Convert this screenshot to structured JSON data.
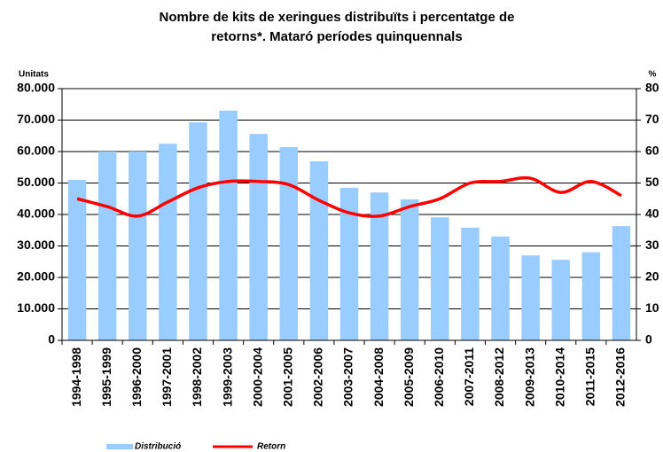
{
  "chart_data": {
    "type": "bar_line",
    "title": [
      "Nombre de kits de xeringues distribuïts i percentatge de",
      "retorns*. Mataró períodes quinquennals"
    ],
    "y_label": "Unitats",
    "y2_label": "%",
    "categories": [
      "1994-1998",
      "1995-1999",
      "1996-2000",
      "1997-2001",
      "1998-2002",
      "1999-2003",
      "2000-2004",
      "2001-2005",
      "2002-2006",
      "2003-2007",
      "2004-2008",
      "2005-2009",
      "2006-2010",
      "2007-2011",
      "2008-2012",
      "2009-2013",
      "2010-2014",
      "2011-2015",
      "2012-2016"
    ],
    "series": [
      {
        "name": "Distribució",
        "type": "bar",
        "color": "#99ccff",
        "values": [
          51000,
          60000,
          60000,
          62500,
          69300,
          73000,
          65600,
          61400,
          56900,
          48500,
          47000,
          44800,
          39100,
          35800,
          33000,
          27000,
          25600,
          28000,
          36300
        ]
      },
      {
        "name": "Retorn",
        "type": "line",
        "axis": "y2",
        "color": "#ff0000",
        "values": [
          45,
          42.5,
          39.5,
          44,
          48.5,
          50.5,
          50.5,
          49.5,
          44.5,
          40.5,
          39.5,
          42.5,
          45,
          50,
          50.5,
          51.5,
          47,
          50.5,
          46
        ]
      }
    ],
    "ylim": [
      0,
      80000
    ],
    "yticks": [
      0,
      {
        "value": 10000,
        "label": "10.000"
      },
      {
        "value": 20000,
        "label": "20.000"
      },
      {
        "value": 30000,
        "label": "30.000"
      },
      {
        "value": 40000,
        "label": "40.000"
      },
      {
        "value": 50000,
        "label": "50.000"
      },
      {
        "value": 60000,
        "label": "60.000"
      },
      {
        "value": 70000,
        "label": "70.000"
      },
      {
        "value": 80000,
        "label": "80.000"
      }
    ],
    "y2lim": [
      0,
      80
    ],
    "y2ticks": [
      0,
      10,
      20,
      30,
      40,
      50,
      60,
      70,
      80
    ],
    "grid": true
  }
}
